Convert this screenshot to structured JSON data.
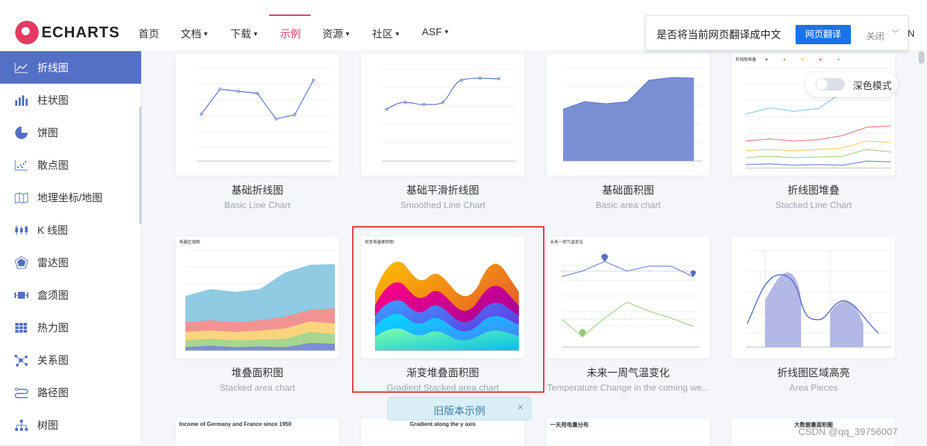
{
  "header": {
    "logo_text": "ECHARTS",
    "nav": [
      {
        "label": "首页",
        "caret": ""
      },
      {
        "label": "文档",
        "caret": "▼"
      },
      {
        "label": "下载",
        "caret": "▼"
      },
      {
        "label": "示例",
        "caret": ""
      },
      {
        "label": "资源",
        "caret": "▼"
      },
      {
        "label": "社区",
        "caret": "▼"
      },
      {
        "label": "ASF",
        "caret": "▼"
      }
    ],
    "active_nav": "示例",
    "truncated": "N"
  },
  "translate_bar": {
    "question": "是否将当前网页翻译成中文",
    "translate_button": "网页翻译",
    "close": "关闭",
    "chevron": "﹀"
  },
  "sidebar": {
    "items": [
      {
        "label": "折线图",
        "icon": "line-chart-icon"
      },
      {
        "label": "柱状图",
        "icon": "bar-chart-icon"
      },
      {
        "label": "饼图",
        "icon": "pie-chart-icon"
      },
      {
        "label": "散点图",
        "icon": "scatter-chart-icon"
      },
      {
        "label": "地理坐标/地图",
        "icon": "map-icon"
      },
      {
        "label": "K 线图",
        "icon": "candlestick-icon"
      },
      {
        "label": "雷达图",
        "icon": "radar-icon"
      },
      {
        "label": "盒须图",
        "icon": "boxplot-icon"
      },
      {
        "label": "热力图",
        "icon": "heatmap-icon"
      },
      {
        "label": "关系图",
        "icon": "graph-icon"
      },
      {
        "label": "路径图",
        "icon": "lines-icon"
      },
      {
        "label": "树图",
        "icon": "tree-icon"
      }
    ],
    "active": "折线图"
  },
  "dark_mode": {
    "label": "深色模式",
    "enabled": false
  },
  "cards": [
    {
      "title": "基础折线图",
      "subtitle": "Basic Line Chart"
    },
    {
      "title": "基础平滑折线图",
      "subtitle": "Smoothed Line Chart"
    },
    {
      "title": "基础面积图",
      "subtitle": "Basic area chart"
    },
    {
      "title": "折线图堆叠",
      "subtitle": "Stacked Line Chart"
    },
    {
      "title": "堆叠面积图",
      "subtitle": "Stacked area chart"
    },
    {
      "title": "渐变堆叠面积图",
      "subtitle": "Gradient Stacked area chart"
    },
    {
      "title": "未来一周气温变化",
      "subtitle": "Temperature Change in the coming we..."
    },
    {
      "title": "折线图区域高亮",
      "subtitle": "Area Pieces"
    }
  ],
  "thumb_text": {
    "stacked_line_title": "折线图堆叠",
    "stacked_area_title": "堆叠区域图",
    "gradient_title": "渐变堆叠面积图",
    "temp_title": "未来一周气温变化",
    "row3_a": "Income of Germany and France since 1950",
    "row3_b": "Gradient along the y axis",
    "row3_c": "一天用电量分布",
    "row3_d": "大数据量面积图"
  },
  "old_banner": {
    "label": "旧版本示例",
    "close": "×"
  },
  "watermark": "CSDN @qq_39756007",
  "colors": {
    "accent": "#e43961",
    "primary": "#5470c6",
    "highlight": "#e0393e"
  }
}
